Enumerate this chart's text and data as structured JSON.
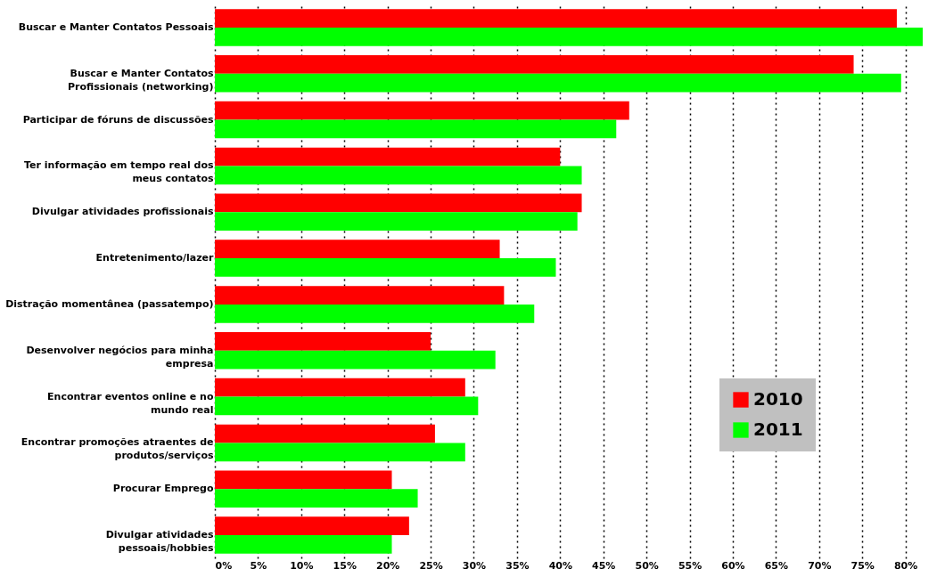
{
  "chart_data": {
    "type": "bar",
    "orientation": "horizontal",
    "categories": [
      "Buscar e Manter Contatos Pessoais",
      "Buscar e Manter Contatos Profissionais (networking)",
      "Participar de fóruns de discussões",
      "Ter informação em tempo real dos meus contatos",
      "Divulgar atividades profissionais",
      "Entretenimento/lazer",
      "Distração momentânea (passatempo)",
      "Desenvolver negócios para minha empresa",
      "Encontrar eventos online e no mundo real",
      "Encontrar promoções atraentes de produtos/serviços",
      "Procurar Emprego",
      "Divulgar atividades pessoais/hobbies"
    ],
    "series": [
      {
        "name": "2010",
        "color": "#ff0000",
        "values": [
          79,
          74,
          48,
          40,
          42.5,
          33,
          33.5,
          25,
          29,
          25.5,
          20.5,
          22.5
        ]
      },
      {
        "name": "2011",
        "color": "#00ff00",
        "values": [
          82,
          79.5,
          46.5,
          42.5,
          42,
          39.5,
          37,
          32.5,
          30.5,
          29,
          23.5,
          20.5
        ]
      }
    ],
    "xlim": [
      0,
      82
    ],
    "xticks": [
      {
        "value": 0,
        "label": "0%"
      },
      {
        "value": 5,
        "label": "5%"
      },
      {
        "value": 10,
        "label": "10%"
      },
      {
        "value": 15,
        "label": "15%"
      },
      {
        "value": 20,
        "label": "20%"
      },
      {
        "value": 25,
        "label": "25%"
      },
      {
        "value": 30,
        "label": "30%"
      },
      {
        "value": 35,
        "label": "35%"
      },
      {
        "value": 40,
        "label": "40%"
      },
      {
        "value": 45,
        "label": "45%"
      },
      {
        "value": 50,
        "label": "50%"
      },
      {
        "value": 55,
        "label": "55%"
      },
      {
        "value": 60,
        "label": "60%"
      },
      {
        "value": 65,
        "label": "65%"
      },
      {
        "value": 70,
        "label": "70%"
      },
      {
        "value": 75,
        "label": "75%"
      },
      {
        "value": 80,
        "label": "80%"
      }
    ],
    "grid": "x",
    "legend": "bottom right"
  }
}
